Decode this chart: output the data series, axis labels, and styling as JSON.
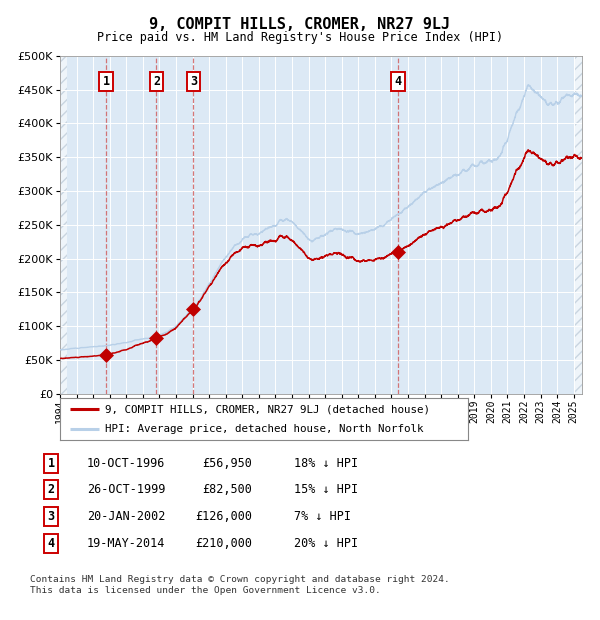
{
  "title": "9, COMPIT HILLS, CROMER, NR27 9LJ",
  "subtitle": "Price paid vs. HM Land Registry's House Price Index (HPI)",
  "ylim": [
    0,
    500000
  ],
  "yticks": [
    0,
    50000,
    100000,
    150000,
    200000,
    250000,
    300000,
    350000,
    400000,
    450000,
    500000
  ],
  "hpi_color": "#b8d0e8",
  "price_color": "#c00000",
  "marker_color": "#c00000",
  "bg_color": "#dce9f5",
  "grid_color": "#ffffff",
  "dashed_line_color": "#d06060",
  "purchases": [
    {
      "label": "1",
      "date": "1996-10-10",
      "price": 56950,
      "x": 1996.78
    },
    {
      "label": "2",
      "date": "1999-10-26",
      "price": 82500,
      "x": 1999.82
    },
    {
      "label": "3",
      "date": "2002-01-20",
      "price": 126000,
      "x": 2002.05
    },
    {
      "label": "4",
      "date": "2014-05-19",
      "price": 210000,
      "x": 2014.38
    }
  ],
  "xmin": 1994.0,
  "xmax": 2025.5,
  "xticks": [
    1994,
    1995,
    1996,
    1997,
    1998,
    1999,
    2000,
    2001,
    2002,
    2003,
    2004,
    2005,
    2006,
    2007,
    2008,
    2009,
    2010,
    2011,
    2012,
    2013,
    2014,
    2015,
    2016,
    2017,
    2018,
    2019,
    2020,
    2021,
    2022,
    2023,
    2024,
    2025
  ],
  "legend_price_label": "9, COMPIT HILLS, CROMER, NR27 9LJ (detached house)",
  "legend_hpi_label": "HPI: Average price, detached house, North Norfolk",
  "footer": "Contains HM Land Registry data © Crown copyright and database right 2024.\nThis data is licensed under the Open Government Licence v3.0.",
  "table_entries": [
    {
      "num": "1",
      "date": "10-OCT-1996",
      "price": "£56,950",
      "pct": "18% ↓ HPI"
    },
    {
      "num": "2",
      "date": "26-OCT-1999",
      "price": "£82,500",
      "pct": "15% ↓ HPI"
    },
    {
      "num": "3",
      "date": "20-JAN-2002",
      "price": "£126,000",
      "pct": "7% ↓ HPI"
    },
    {
      "num": "4",
      "date": "19-MAY-2014",
      "price": "£210,000",
      "pct": "20% ↓ HPI"
    }
  ],
  "hpi_anchors": [
    [
      1994.0,
      65000
    ],
    [
      1994.5,
      66000
    ],
    [
      1995.0,
      67500
    ],
    [
      1995.5,
      68500
    ],
    [
      1996.0,
      69500
    ],
    [
      1996.5,
      70500
    ],
    [
      1997.0,
      72000
    ],
    [
      1997.5,
      74000
    ],
    [
      1998.0,
      76000
    ],
    [
      1998.5,
      78500
    ],
    [
      1999.0,
      81000
    ],
    [
      1999.5,
      83500
    ],
    [
      2000.0,
      87000
    ],
    [
      2000.5,
      92000
    ],
    [
      2001.0,
      100000
    ],
    [
      2001.5,
      112000
    ],
    [
      2002.0,
      125000
    ],
    [
      2002.5,
      142000
    ],
    [
      2003.0,
      162000
    ],
    [
      2003.5,
      183000
    ],
    [
      2004.0,
      202000
    ],
    [
      2004.5,
      218000
    ],
    [
      2005.0,
      228000
    ],
    [
      2005.5,
      234000
    ],
    [
      2006.0,
      238000
    ],
    [
      2006.5,
      244000
    ],
    [
      2007.0,
      250000
    ],
    [
      2007.3,
      256000
    ],
    [
      2007.7,
      260000
    ],
    [
      2008.0,
      255000
    ],
    [
      2008.4,
      245000
    ],
    [
      2008.8,
      234000
    ],
    [
      2009.2,
      226000
    ],
    [
      2009.6,
      231000
    ],
    [
      2010.0,
      237000
    ],
    [
      2010.4,
      241000
    ],
    [
      2010.8,
      244000
    ],
    [
      2011.2,
      242000
    ],
    [
      2011.6,
      239000
    ],
    [
      2012.0,
      236000
    ],
    [
      2012.4,
      238000
    ],
    [
      2012.8,
      241000
    ],
    [
      2013.2,
      245000
    ],
    [
      2013.6,
      250000
    ],
    [
      2014.0,
      257000
    ],
    [
      2014.4,
      265000
    ],
    [
      2015.0,
      277000
    ],
    [
      2015.5,
      288000
    ],
    [
      2016.0,
      298000
    ],
    [
      2016.5,
      306000
    ],
    [
      2017.0,
      313000
    ],
    [
      2017.5,
      319000
    ],
    [
      2018.0,
      325000
    ],
    [
      2018.5,
      332000
    ],
    [
      2019.0,
      338000
    ],
    [
      2019.5,
      344000
    ],
    [
      2020.0,
      343000
    ],
    [
      2020.3,
      346000
    ],
    [
      2020.7,
      360000
    ],
    [
      2021.0,
      378000
    ],
    [
      2021.3,
      398000
    ],
    [
      2021.7,
      420000
    ],
    [
      2022.0,
      440000
    ],
    [
      2022.2,
      455000
    ],
    [
      2022.5,
      452000
    ],
    [
      2022.8,
      445000
    ],
    [
      2023.0,
      438000
    ],
    [
      2023.3,
      432000
    ],
    [
      2023.6,
      428000
    ],
    [
      2023.9,
      430000
    ],
    [
      2024.2,
      435000
    ],
    [
      2024.5,
      440000
    ],
    [
      2024.8,
      443000
    ],
    [
      2025.0,
      442000
    ],
    [
      2025.3,
      440000
    ],
    [
      2025.5,
      437000
    ]
  ]
}
